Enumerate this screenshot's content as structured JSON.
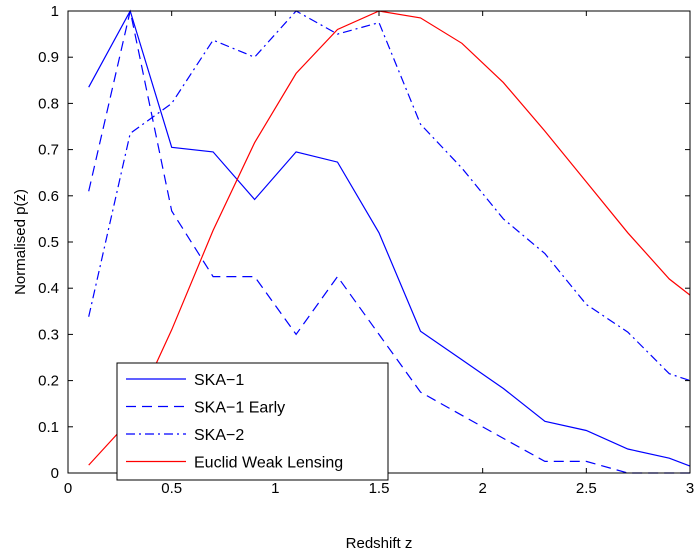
{
  "chart_data": {
    "type": "line",
    "xlabel": "Redshift z",
    "ylabel": "Normalised p(z)",
    "xlim": [
      0,
      3
    ],
    "ylim": [
      0,
      1
    ],
    "xticks": [
      0,
      0.5,
      1,
      1.5,
      2,
      2.5,
      3
    ],
    "yticks": [
      0,
      0.1,
      0.2,
      0.3,
      0.4,
      0.5,
      0.6,
      0.7,
      0.8,
      0.9,
      1
    ],
    "xtick_labels": [
      "0",
      "0.5",
      "1",
      "1.5",
      "2",
      "2.5",
      "3"
    ],
    "ytick_labels": [
      "0",
      "0.1",
      "0.2",
      "0.3",
      "0.4",
      "0.5",
      "0.6",
      "0.7",
      "0.8",
      "0.9",
      "1"
    ],
    "grid": false,
    "legend_position": "bottom-left",
    "series": [
      {
        "name": "SKA−1",
        "color": "#0000ff",
        "style": "solid",
        "x": [
          0.1,
          0.3,
          0.5,
          0.7,
          0.9,
          1.1,
          1.3,
          1.5,
          1.7,
          1.9,
          2.1,
          2.3,
          2.5,
          2.7,
          2.9,
          3.0
        ],
        "y": [
          0.835,
          1.0,
          0.705,
          0.695,
          0.592,
          0.695,
          0.673,
          0.52,
          0.307,
          0.245,
          0.183,
          0.112,
          0.092,
          0.052,
          0.032,
          0.015
        ]
      },
      {
        "name": "SKA−1 Early",
        "color": "#0000ff",
        "style": "dashed",
        "x": [
          0.1,
          0.3,
          0.5,
          0.7,
          0.9,
          1.1,
          1.3,
          1.5,
          1.7,
          1.9,
          2.1,
          2.3,
          2.5,
          2.7,
          2.9,
          3.0
        ],
        "y": [
          0.61,
          1.0,
          0.567,
          0.425,
          0.425,
          0.3,
          0.425,
          0.3,
          0.175,
          0.125,
          0.075,
          0.025,
          0.025,
          0.0,
          0.0,
          0.0
        ]
      },
      {
        "name": "SKA−2",
        "color": "#0000ff",
        "style": "dashdot",
        "x": [
          0.1,
          0.3,
          0.5,
          0.7,
          0.9,
          1.1,
          1.3,
          1.5,
          1.7,
          1.9,
          2.1,
          2.3,
          2.5,
          2.7,
          2.9,
          3.0
        ],
        "y": [
          0.338,
          0.735,
          0.8,
          0.937,
          0.9,
          1.0,
          0.95,
          0.975,
          0.755,
          0.66,
          0.55,
          0.475,
          0.365,
          0.305,
          0.215,
          0.2
        ]
      },
      {
        "name": "Euclid Weak Lensing",
        "color": "#ff0000",
        "style": "solid",
        "x": [
          0.1,
          0.3,
          0.5,
          0.7,
          0.9,
          1.1,
          1.3,
          1.5,
          1.7,
          1.9,
          2.1,
          2.3,
          2.5,
          2.7,
          2.9,
          3.0
        ],
        "y": [
          0.017,
          0.115,
          0.31,
          0.525,
          0.715,
          0.865,
          0.96,
          1.0,
          0.985,
          0.93,
          0.845,
          0.74,
          0.63,
          0.52,
          0.42,
          0.385
        ]
      }
    ]
  }
}
